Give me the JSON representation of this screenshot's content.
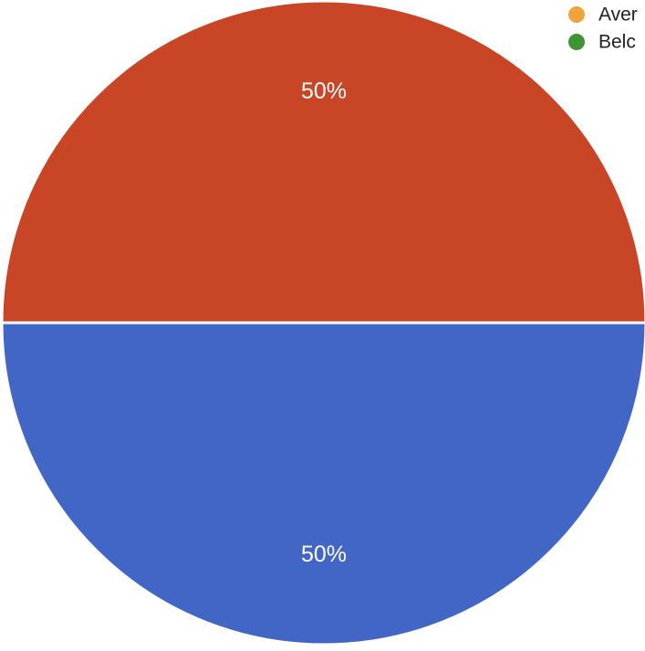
{
  "chart_data": {
    "type": "pie",
    "slices": [
      {
        "value": 50,
        "label": "50%",
        "color": "#c84526"
      },
      {
        "value": 50,
        "label": "50%",
        "color": "#4266c6"
      }
    ],
    "legend": {
      "placement": "top-right",
      "items": [
        {
          "label": "Aver",
          "color": "#f0a33a"
        },
        {
          "label": "Belc",
          "color": "#3f9434"
        }
      ]
    }
  }
}
